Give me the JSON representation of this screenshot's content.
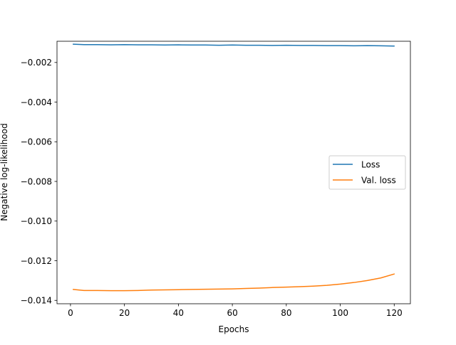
{
  "chart_data": {
    "type": "line",
    "title": "",
    "xlabel": "Epochs",
    "ylabel": "Negative log-likelihood",
    "xlim": [
      -5,
      126
    ],
    "ylim": [
      -0.01417,
      -0.00093
    ],
    "xticks": [
      0,
      20,
      40,
      60,
      80,
      100,
      120
    ],
    "xtick_labels": [
      "0",
      "20",
      "40",
      "60",
      "80",
      "100",
      "120"
    ],
    "yticks": [
      -0.014,
      -0.012,
      -0.01,
      -0.008,
      -0.006,
      -0.004,
      -0.002
    ],
    "ytick_labels": [
      "−0.014",
      "−0.012",
      "−0.010",
      "−0.008",
      "−0.006",
      "−0.004",
      "−0.002"
    ],
    "grid": false,
    "legend_position": "center-right",
    "series": [
      {
        "name": "Loss",
        "color": "#1f77b4",
        "x": [
          1,
          5,
          10,
          15,
          20,
          25,
          30,
          35,
          40,
          45,
          50,
          55,
          60,
          65,
          70,
          75,
          80,
          85,
          90,
          95,
          100,
          105,
          110,
          115,
          120
        ],
        "y": [
          -0.00108,
          -0.0011,
          -0.0011,
          -0.00111,
          -0.0011,
          -0.00111,
          -0.00111,
          -0.00112,
          -0.00111,
          -0.00112,
          -0.00112,
          -0.00113,
          -0.00112,
          -0.00113,
          -0.00113,
          -0.00114,
          -0.00113,
          -0.00114,
          -0.00114,
          -0.00115,
          -0.00115,
          -0.00116,
          -0.00115,
          -0.00116,
          -0.00117
        ]
      },
      {
        "name": "Val. loss",
        "color": "#ff7f0e",
        "x": [
          1,
          5,
          10,
          15,
          20,
          25,
          30,
          35,
          40,
          45,
          50,
          55,
          60,
          65,
          70,
          75,
          80,
          85,
          90,
          95,
          100,
          105,
          110,
          115,
          120
        ],
        "y": [
          -0.01345,
          -0.0135,
          -0.0135,
          -0.01351,
          -0.01351,
          -0.0135,
          -0.01348,
          -0.01347,
          -0.01346,
          -0.01345,
          -0.01344,
          -0.01343,
          -0.01342,
          -0.0134,
          -0.01338,
          -0.01335,
          -0.01333,
          -0.01331,
          -0.01328,
          -0.01324,
          -0.01318,
          -0.0131,
          -0.013,
          -0.01287,
          -0.01267
        ]
      }
    ]
  }
}
